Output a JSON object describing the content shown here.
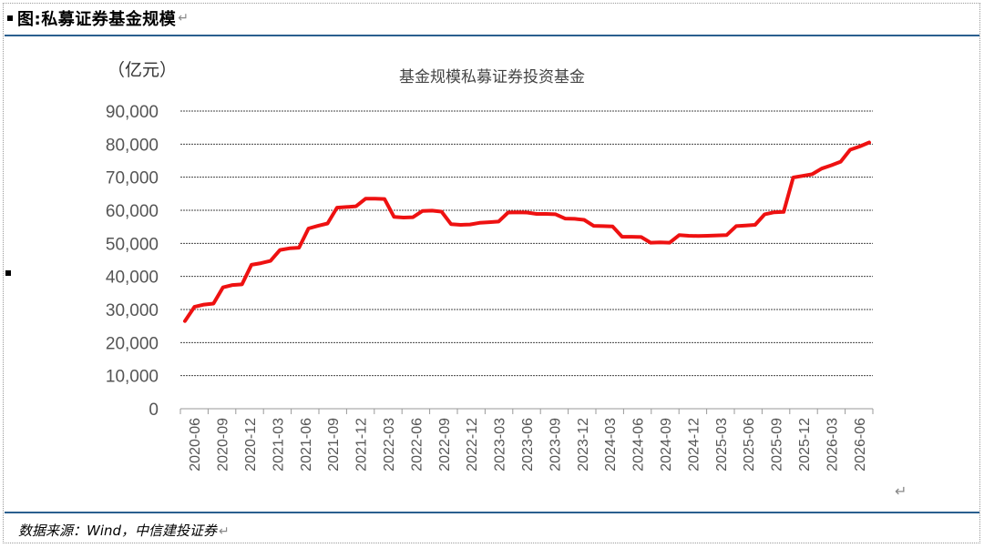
{
  "header": {
    "title": "图:私募证券基金规模",
    "para_mark": "↵"
  },
  "source": {
    "text": "数据来源：Wind，中信建投证券",
    "para_mark": "↵"
  },
  "end_mark": "↵",
  "colors": {
    "line": "#ee1111",
    "rule": "#2a5f8f",
    "grid": "#333333"
  },
  "chart_data": {
    "type": "line",
    "title": "基金规模私募证券投资基金",
    "unit_label": "（亿元）",
    "ylim": [
      0,
      90000
    ],
    "yticks": [
      "0",
      "10,000",
      "20,000",
      "30,000",
      "40,000",
      "50,000",
      "60,000",
      "70,000",
      "80,000",
      "90,000"
    ],
    "ytick_values": [
      0,
      10000,
      20000,
      30000,
      40000,
      50000,
      60000,
      70000,
      80000,
      90000
    ],
    "xtick_labels": [
      "2020-06",
      "2020-09",
      "2020-12",
      "2021-03",
      "2021-06",
      "2021-09",
      "2021-12",
      "2022-03",
      "2022-06",
      "2022-09",
      "2022-12",
      "2023-03",
      "2023-06",
      "2023-09",
      "2023-12",
      "2024-03",
      "2024-06",
      "2024-09",
      "2024-12",
      "2025-03",
      "2025-06",
      "2025-09",
      "2025-12",
      "2026-03",
      "2026-06"
    ],
    "grid": true,
    "legend": "none",
    "series": [
      {
        "values": [
          26500,
          30800,
          31500,
          31800,
          36700,
          37400,
          37600,
          43500,
          44000,
          44700,
          48000,
          48500,
          48700,
          54500,
          55300,
          56000,
          60800,
          61000,
          61200,
          63500,
          63500,
          63400,
          58000,
          57800,
          57900,
          59800,
          59900,
          59600,
          55800,
          55600,
          55700,
          56200,
          56400,
          56600,
          59300,
          59400,
          59300,
          58900,
          58900,
          58800,
          57500,
          57400,
          57100,
          55300,
          55200,
          55100,
          52000,
          52000,
          51900,
          50200,
          50300,
          50200,
          52500,
          52300,
          52200,
          52300,
          52400,
          52500,
          55200,
          55400,
          55600,
          58800,
          59400,
          59500,
          69900,
          70400,
          70900,
          72600,
          73600,
          74700,
          78300,
          79300,
          80500
        ]
      }
    ]
  }
}
